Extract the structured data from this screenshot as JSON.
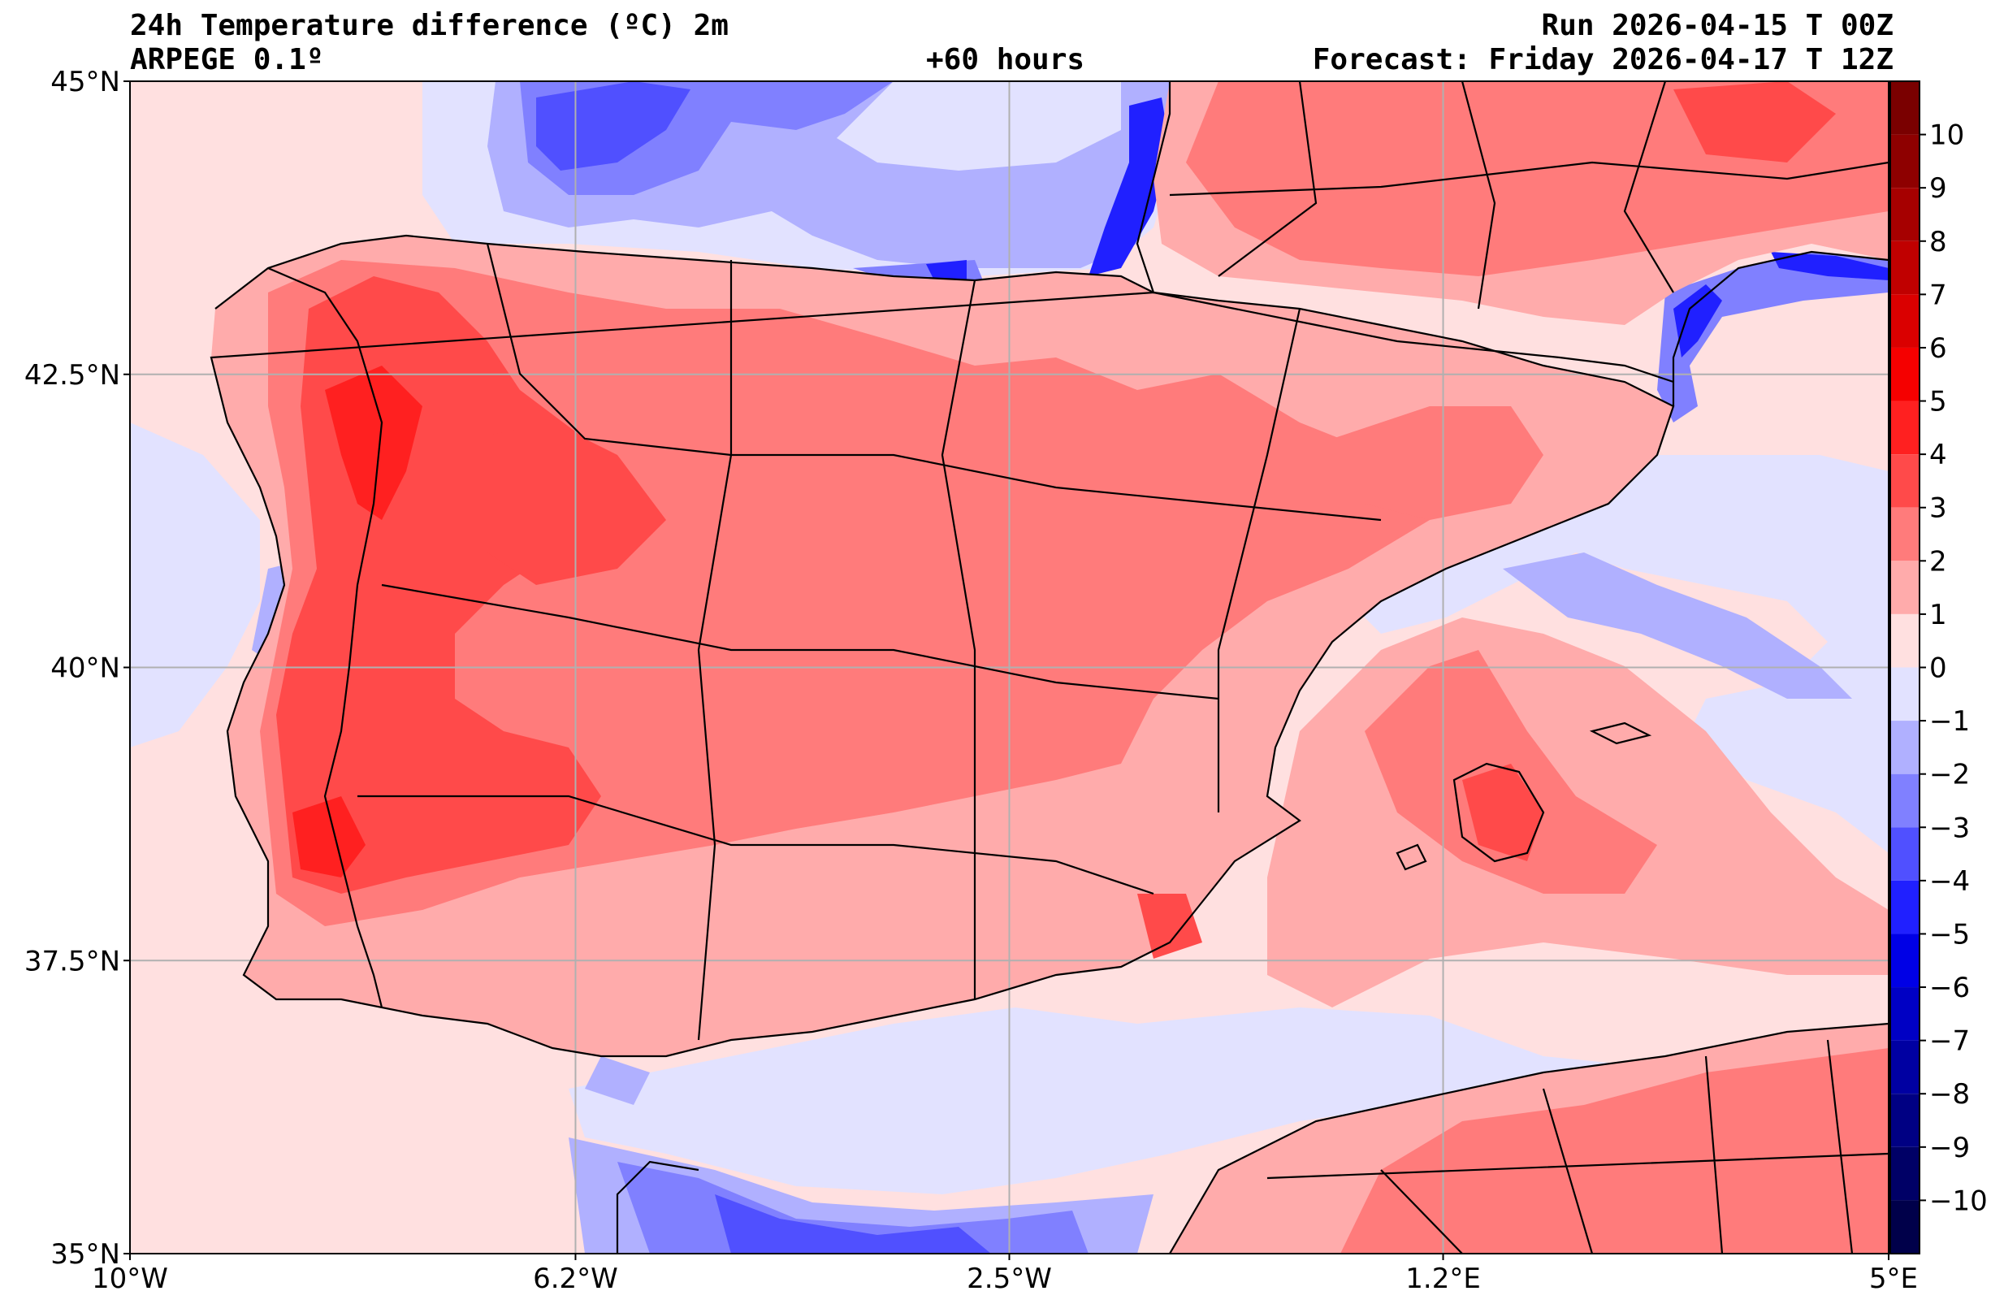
{
  "header": {
    "title": "24h Temperature difference (ºC) 2m",
    "model": "ARPEGE 0.1º",
    "lead_time": "+60 hours",
    "run": "Run 2026-04-15 T 00Z",
    "forecast": "Forecast: Friday 2026-04-17 T 12Z"
  },
  "map": {
    "lon_range": [
      -10,
      5
    ],
    "lat_range": [
      35,
      45
    ],
    "lon_ticks": [
      {
        "value": -10,
        "label": "10°W"
      },
      {
        "value": -6.2,
        "label": "6.2°W"
      },
      {
        "value": -2.5,
        "label": "2.5°W"
      },
      {
        "value": 1.2,
        "label": "1.2°E"
      },
      {
        "value": 5,
        "label": "5°E"
      }
    ],
    "lat_ticks": [
      {
        "value": 45,
        "label": "45°N"
      },
      {
        "value": 42.5,
        "label": "42.5°N"
      },
      {
        "value": 40,
        "label": "40°N"
      },
      {
        "value": 37.5,
        "label": "37.5°N"
      },
      {
        "value": 35,
        "label": "35°N"
      }
    ],
    "grid": true
  },
  "colorbar": {
    "range": [
      -11,
      11
    ],
    "ticks": [
      10,
      9,
      8,
      7,
      6,
      5,
      4,
      3,
      2,
      1,
      0,
      -1,
      -2,
      -3,
      -4,
      -5,
      -6,
      -7,
      -8,
      -9,
      -10
    ],
    "tick_labels": [
      "10",
      "9",
      "8",
      "7",
      "6",
      "5",
      "4",
      "3",
      "2",
      "1",
      "0",
      "−1",
      "−2",
      "−3",
      "−4",
      "−5",
      "−6",
      "−7",
      "−8",
      "−9",
      "−10"
    ],
    "bands": [
      {
        "from": 10,
        "to": 11,
        "color": "#7a0000"
      },
      {
        "from": 9,
        "to": 10,
        "color": "#8e0000"
      },
      {
        "from": 8,
        "to": 9,
        "color": "#a60000"
      },
      {
        "from": 7,
        "to": 8,
        "color": "#c00000"
      },
      {
        "from": 6,
        "to": 7,
        "color": "#da0000"
      },
      {
        "from": 5,
        "to": 6,
        "color": "#f50000"
      },
      {
        "from": 4,
        "to": 5,
        "color": "#ff2020"
      },
      {
        "from": 3,
        "to": 4,
        "color": "#ff4a4a"
      },
      {
        "from": 2,
        "to": 3,
        "color": "#ff7b7b"
      },
      {
        "from": 1,
        "to": 2,
        "color": "#ffabab"
      },
      {
        "from": 0,
        "to": 1,
        "color": "#ffe0e0"
      },
      {
        "from": -1,
        "to": 0,
        "color": "#e2e2ff"
      },
      {
        "from": -2,
        "to": -1,
        "color": "#b0b0ff"
      },
      {
        "from": -3,
        "to": -2,
        "color": "#8080ff"
      },
      {
        "from": -4,
        "to": -3,
        "color": "#5050ff"
      },
      {
        "from": -5,
        "to": -4,
        "color": "#2020ff"
      },
      {
        "from": -6,
        "to": -5,
        "color": "#0000e6"
      },
      {
        "from": -7,
        "to": -6,
        "color": "#0000c4"
      },
      {
        "from": -8,
        "to": -7,
        "color": "#0000a2"
      },
      {
        "from": -9,
        "to": -8,
        "color": "#000083"
      },
      {
        "from": -10,
        "to": -9,
        "color": "#000066"
      },
      {
        "from": -11,
        "to": -10,
        "color": "#00004a"
      }
    ]
  },
  "field_colors": {
    "sea_light_pink": "#ffe0e0",
    "light_red": "#ffabab",
    "medium_red": "#ff7b7b",
    "red": "#ff4a4a",
    "bright_red": "#ff2020",
    "pale_blue": "#e2e2ff",
    "light_blue": "#b0b0ff",
    "blue": "#8080ff",
    "deep_blue": "#5050ff",
    "strong_blue": "#2020ff",
    "border_black": "#000000",
    "grid_gray": "#b0b0b0"
  }
}
